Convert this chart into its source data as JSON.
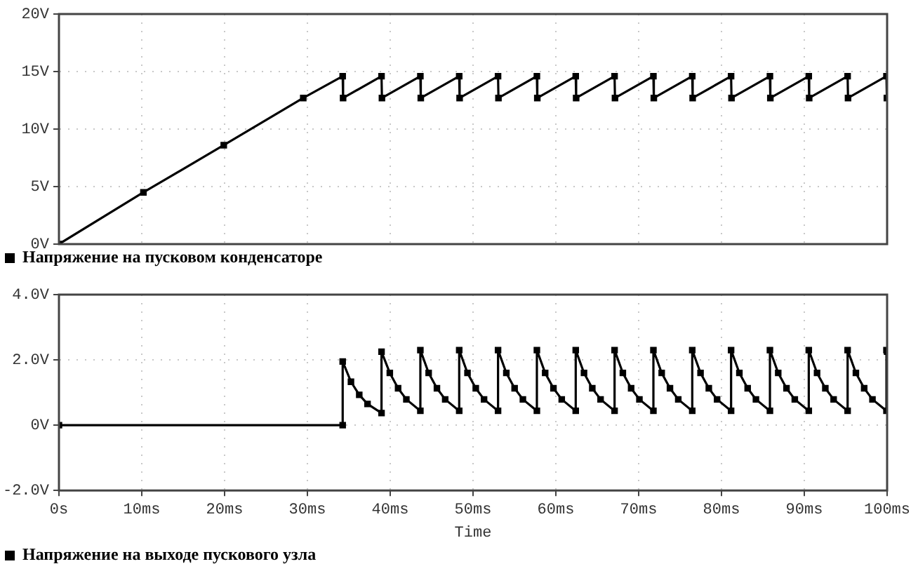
{
  "chart_data": [
    {
      "type": "line",
      "xlim": [
        0,
        100
      ],
      "xticks": [
        {
          "value": 0,
          "label": null
        },
        {
          "value": 10,
          "label": null
        },
        {
          "value": 20,
          "label": null
        },
        {
          "value": 30,
          "label": null
        },
        {
          "value": 40,
          "label": null
        },
        {
          "value": 50,
          "label": null
        },
        {
          "value": 60,
          "label": null
        },
        {
          "value": 70,
          "label": null
        },
        {
          "value": 80,
          "label": null
        },
        {
          "value": 90,
          "label": null
        },
        {
          "value": 100,
          "label": null
        }
      ],
      "ylim": [
        0,
        20
      ],
      "yticks": [
        {
          "value": 0,
          "label": "0V"
        },
        {
          "value": 5,
          "label": "5V"
        },
        {
          "value": 10,
          "label": "10V"
        },
        {
          "value": 15,
          "label": "15V"
        },
        {
          "value": 20,
          "label": "20V"
        }
      ],
      "tick_labels": "y",
      "grid": true,
      "legend": "bottom",
      "marker": "square",
      "line_style": "solid",
      "series": [
        {
          "name": "Напряжение на пусковом конденсаторе",
          "color": "#000000",
          "x": [
            0,
            10.2,
            19.9,
            29.5,
            34.26,
            34.31,
            38.95,
            39.0,
            43.64,
            43.69,
            48.33,
            48.38,
            53.02,
            53.07,
            57.71,
            57.76,
            62.4,
            62.45,
            67.09,
            67.14,
            71.78,
            71.83,
            76.47,
            76.52,
            81.16,
            81.21,
            85.85,
            85.9,
            90.54,
            90.59,
            95.23,
            95.28,
            99.92,
            99.97
          ],
          "values": [
            0,
            4.5,
            8.6,
            12.7,
            14.6,
            12.7,
            14.6,
            12.7,
            14.6,
            12.7,
            14.6,
            12.7,
            14.6,
            12.7,
            14.6,
            12.7,
            14.6,
            12.7,
            14.6,
            12.7,
            14.6,
            12.7,
            14.6,
            12.7,
            14.6,
            12.7,
            14.6,
            12.7,
            14.6,
            12.7,
            14.6,
            12.7,
            14.6,
            12.7
          ]
        }
      ]
    },
    {
      "type": "line",
      "xlabel": "Time",
      "xlim": [
        0,
        100
      ],
      "xticks": [
        {
          "value": 0,
          "label": "0s"
        },
        {
          "value": 10,
          "label": "10ms"
        },
        {
          "value": 20,
          "label": "20ms"
        },
        {
          "value": 30,
          "label": "30ms"
        },
        {
          "value": 40,
          "label": "40ms"
        },
        {
          "value": 50,
          "label": "50ms"
        },
        {
          "value": 60,
          "label": "60ms"
        },
        {
          "value": 70,
          "label": "70ms"
        },
        {
          "value": 80,
          "label": "80ms"
        },
        {
          "value": 90,
          "label": "90ms"
        },
        {
          "value": 100,
          "label": "100ms"
        }
      ],
      "ylim": [
        -2,
        4
      ],
      "yticks": [
        {
          "value": -2,
          "label": "-2.0V"
        },
        {
          "value": 0,
          "label": "0V"
        },
        {
          "value": 2,
          "label": "2.0V"
        },
        {
          "value": 4,
          "label": "4.0V"
        }
      ],
      "grid": true,
      "legend": "bottom",
      "marker": "square",
      "line_style": "solid",
      "series": [
        {
          "name": "Напряжение на выходе пускового узла",
          "color": "#000000",
          "x": [
            0,
            34.26,
            34.26,
            35.26,
            36.26,
            37.26,
            38.95,
            38.95,
            39.95,
            40.95,
            41.95,
            43.64,
            43.64,
            44.64,
            45.64,
            46.64,
            48.33,
            48.33,
            49.33,
            50.33,
            51.33,
            53.02,
            53.02,
            54.02,
            55.02,
            56.02,
            57.71,
            57.71,
            58.71,
            59.71,
            60.71,
            62.4,
            62.4,
            63.4,
            64.4,
            65.4,
            67.09,
            67.09,
            68.09,
            69.09,
            70.09,
            71.78,
            71.78,
            72.78,
            73.78,
            74.78,
            76.47,
            76.47,
            77.47,
            78.47,
            79.47,
            81.16,
            81.16,
            82.16,
            83.16,
            84.16,
            85.85,
            85.85,
            86.85,
            87.85,
            88.85,
            90.54,
            90.54,
            91.54,
            92.54,
            93.54,
            95.23,
            95.23,
            96.23,
            97.23,
            98.23,
            99.92,
            99.92,
            100
          ],
          "values": [
            0,
            0,
            1.95,
            1.33,
            0.93,
            0.65,
            0.37,
            2.25,
            1.6,
            1.13,
            0.79,
            0.44,
            2.3,
            1.6,
            1.13,
            0.79,
            0.44,
            2.3,
            1.6,
            1.13,
            0.79,
            0.44,
            2.3,
            1.6,
            1.13,
            0.79,
            0.44,
            2.3,
            1.6,
            1.13,
            0.79,
            0.44,
            2.3,
            1.6,
            1.13,
            0.79,
            0.44,
            2.3,
            1.6,
            1.13,
            0.79,
            0.44,
            2.3,
            1.6,
            1.13,
            0.79,
            0.44,
            2.3,
            1.6,
            1.13,
            0.79,
            0.44,
            2.3,
            1.6,
            1.13,
            0.79,
            0.44,
            2.3,
            1.6,
            1.13,
            0.79,
            0.44,
            2.3,
            1.6,
            1.13,
            0.79,
            0.44,
            2.3,
            1.6,
            1.13,
            0.79,
            0.44,
            2.3,
            2.25
          ]
        }
      ]
    }
  ]
}
